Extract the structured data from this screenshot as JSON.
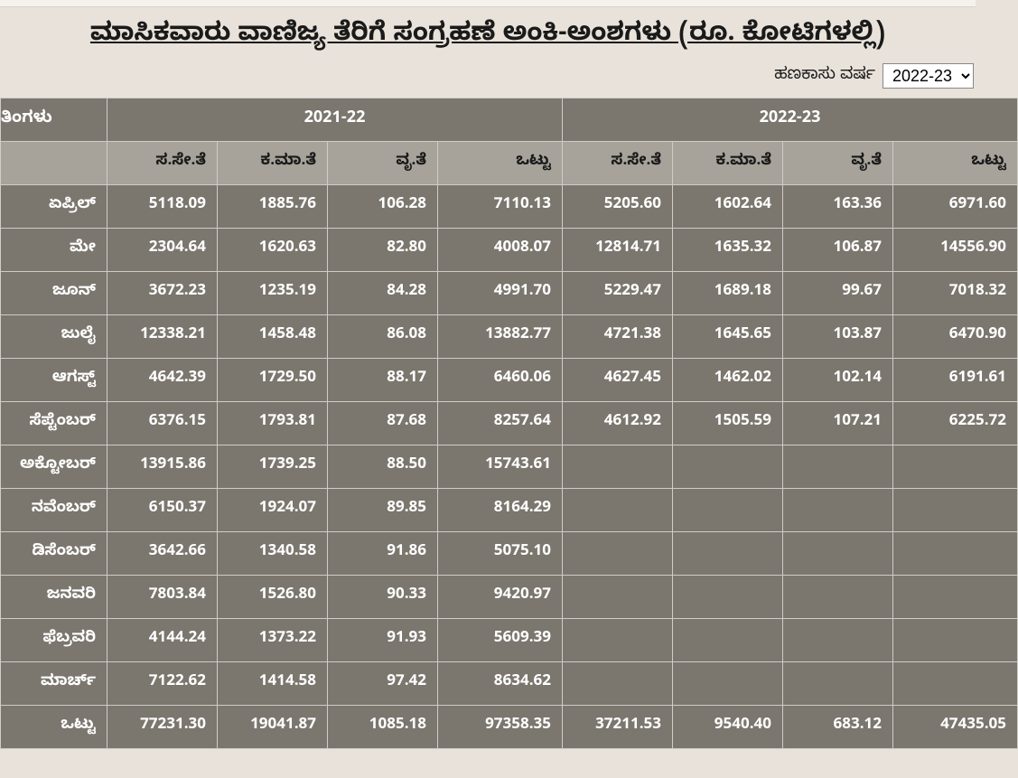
{
  "title": "ಮಾಸಿಕವಾರು ವಾಣಿಜ್ಯ ತೆರಿಗೆ ಸಂಗ್ರಹಣೆ ಅಂಕಿ-ಅಂಶಗಳು (ರೂ. ಕೋಟಿಗಳಲ್ಲಿ)",
  "fy_label": "ಹಣಕಾಸು ವರ್ಷ",
  "fy_value": "2022-23",
  "colors": {
    "page_bg": "#e8e2da",
    "header_bg": "#7b766e",
    "subheader_bg": "#a7a29a",
    "cell_bg": "#7b766e",
    "border": "#d0cdc7",
    "text_light": "#ffffff",
    "text_dark": "#1a1a1a"
  },
  "headers": {
    "months": "ತಿಂಗಳು",
    "year1": "2021-22",
    "year2": "2022-23",
    "sub": [
      "ಸ.ಸೇ.ತೆ",
      "ಕ.ಮಾ.ತೆ",
      "ವೃ.ತೆ",
      "ಒಟ್ಟು"
    ]
  },
  "rows": [
    {
      "m": "ಏಪ್ರಿಲ್",
      "y1": [
        "5118.09",
        "1885.76",
        "106.28",
        "7110.13"
      ],
      "y2": [
        "5205.60",
        "1602.64",
        "163.36",
        "6971.60"
      ]
    },
    {
      "m": "ಮೇ",
      "y1": [
        "2304.64",
        "1620.63",
        "82.80",
        "4008.07"
      ],
      "y2": [
        "12814.71",
        "1635.32",
        "106.87",
        "14556.90"
      ]
    },
    {
      "m": "ಜೂನ್",
      "y1": [
        "3672.23",
        "1235.19",
        "84.28",
        "4991.70"
      ],
      "y2": [
        "5229.47",
        "1689.18",
        "99.67",
        "7018.32"
      ]
    },
    {
      "m": "ಜುಲೈ",
      "y1": [
        "12338.21",
        "1458.48",
        "86.08",
        "13882.77"
      ],
      "y2": [
        "4721.38",
        "1645.65",
        "103.87",
        "6470.90"
      ]
    },
    {
      "m": "ಆಗಸ್ಟ್",
      "y1": [
        "4642.39",
        "1729.50",
        "88.17",
        "6460.06"
      ],
      "y2": [
        "4627.45",
        "1462.02",
        "102.14",
        "6191.61"
      ]
    },
    {
      "m": "ಸೆಪ್ಟೆಂಬರ್",
      "y1": [
        "6376.15",
        "1793.81",
        "87.68",
        "8257.64"
      ],
      "y2": [
        "4612.92",
        "1505.59",
        "107.21",
        "6225.72"
      ]
    },
    {
      "m": "ಅಕ್ಟೋಬರ್",
      "y1": [
        "13915.86",
        "1739.25",
        "88.50",
        "15743.61"
      ],
      "y2": [
        "",
        "",
        "",
        ""
      ]
    },
    {
      "m": "ನವೆಂಬರ್",
      "y1": [
        "6150.37",
        "1924.07",
        "89.85",
        "8164.29"
      ],
      "y2": [
        "",
        "",
        "",
        ""
      ]
    },
    {
      "m": "ಡಿಸೆಂಬರ್",
      "y1": [
        "3642.66",
        "1340.58",
        "91.86",
        "5075.10"
      ],
      "y2": [
        "",
        "",
        "",
        ""
      ]
    },
    {
      "m": "ಜನವರಿ",
      "y1": [
        "7803.84",
        "1526.80",
        "90.33",
        "9420.97"
      ],
      "y2": [
        "",
        "",
        "",
        ""
      ]
    },
    {
      "m": "ಫೆಬ್ರವರಿ",
      "y1": [
        "4144.24",
        "1373.22",
        "91.93",
        "5609.39"
      ],
      "y2": [
        "",
        "",
        "",
        ""
      ]
    },
    {
      "m": "ಮಾರ್ಚ್",
      "y1": [
        "7122.62",
        "1414.58",
        "97.42",
        "8634.62"
      ],
      "y2": [
        "",
        "",
        "",
        ""
      ]
    },
    {
      "m": "ಒಟ್ಟು",
      "y1": [
        "77231.30",
        "19041.87",
        "1085.18",
        "97358.35"
      ],
      "y2": [
        "37211.53",
        "9540.40",
        "683.12",
        "47435.05"
      ]
    }
  ]
}
